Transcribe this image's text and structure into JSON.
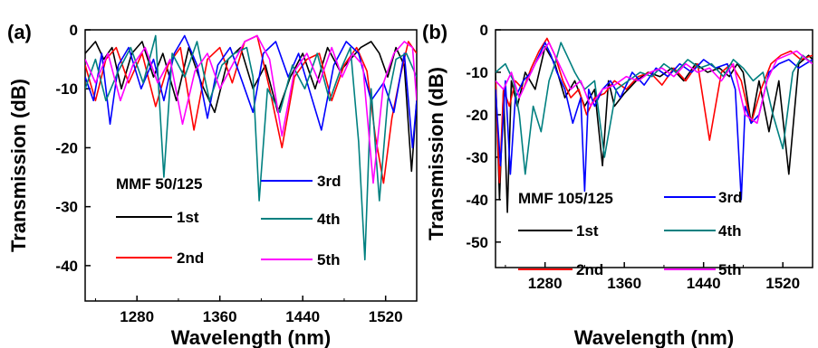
{
  "chart_data": [
    {
      "type": "line",
      "panel_label": "(a)",
      "legend_title": "MMF 50/125",
      "xlabel": "Wavelength (nm)",
      "ylabel": "Transmission (dB)",
      "xlim": [
        1230,
        1550
      ],
      "ylim": [
        -46,
        0
      ],
      "xticks": [
        1280,
        1360,
        1440,
        1520
      ],
      "yticks": [
        0,
        -10,
        -20,
        -30,
        -40
      ],
      "grid": false,
      "series": [
        {
          "name": "1st",
          "color": "#000000",
          "x": [
            1230,
            1240,
            1248,
            1256,
            1265,
            1275,
            1285,
            1296,
            1305,
            1318,
            1330,
            1342,
            1355,
            1368,
            1380,
            1392,
            1404,
            1416,
            1428,
            1440,
            1452,
            1464,
            1476,
            1486,
            1496,
            1506,
            1514,
            1522,
            1530,
            1538,
            1545,
            1550
          ],
          "y": [
            -4,
            -2,
            -5,
            -3,
            -10,
            -4,
            -2,
            -8,
            -4,
            -12,
            -3,
            -9,
            -14,
            -5,
            -3,
            -10,
            -6,
            -14,
            -8,
            -4,
            -10,
            -3,
            -7,
            -5,
            -3,
            -2,
            -4,
            -8,
            -3,
            -6,
            -24,
            -12
          ]
        },
        {
          "name": "2nd",
          "color": "#ff0000",
          "x": [
            1230,
            1240,
            1250,
            1260,
            1272,
            1285,
            1298,
            1310,
            1322,
            1335,
            1348,
            1360,
            1372,
            1384,
            1396,
            1408,
            1420,
            1432,
            1444,
            1456,
            1468,
            1480,
            1492,
            1502,
            1510,
            1518,
            1526,
            1534,
            1542,
            1550
          ],
          "y": [
            -6,
            -12,
            -5,
            -3,
            -9,
            -4,
            -13,
            -6,
            -3,
            -17,
            -5,
            -3,
            -9,
            -2,
            -1,
            -10,
            -20,
            -8,
            -5,
            -4,
            -12,
            -6,
            -3,
            -7,
            -18,
            -26,
            -15,
            -8,
            -2,
            -4
          ]
        },
        {
          "name": "3rd",
          "color": "#0000ff",
          "x": [
            1230,
            1238,
            1246,
            1254,
            1262,
            1272,
            1284,
            1296,
            1306,
            1316,
            1326,
            1338,
            1348,
            1358,
            1370,
            1382,
            1392,
            1402,
            1414,
            1426,
            1436,
            1446,
            1458,
            1470,
            1482,
            1494,
            1506,
            1518,
            1528,
            1538,
            1546,
            1550
          ],
          "y": [
            -8,
            -12,
            -4,
            -16,
            -6,
            -3,
            -10,
            -5,
            -12,
            -4,
            -1,
            -6,
            -15,
            -6,
            -3,
            -9,
            -14,
            -4,
            -2,
            -8,
            -4,
            -10,
            -17,
            -6,
            -2,
            -4,
            -12,
            -9,
            -14,
            -4,
            -20,
            -12
          ]
        },
        {
          "name": "4th",
          "color": "#008080",
          "x": [
            1230,
            1240,
            1250,
            1262,
            1274,
            1286,
            1298,
            1306,
            1314,
            1326,
            1338,
            1350,
            1362,
            1374,
            1386,
            1392,
            1398,
            1406,
            1418,
            1430,
            1442,
            1454,
            1466,
            1476,
            1486,
            1494,
            1500,
            1506,
            1514,
            1522,
            1530,
            1540,
            1550
          ],
          "y": [
            -10,
            -5,
            -12,
            -7,
            -3,
            -9,
            -1,
            -25,
            -4,
            -8,
            -2,
            -12,
            -6,
            -4,
            -3,
            -8,
            -29,
            -10,
            -14,
            -6,
            -10,
            -4,
            -12,
            -7,
            -3,
            -19,
            -39,
            -10,
            -29,
            -12,
            -5,
            -4,
            -8
          ]
        },
        {
          "name": "5th",
          "color": "#ff00ff",
          "x": [
            1230,
            1240,
            1252,
            1264,
            1276,
            1288,
            1300,
            1312,
            1324,
            1336,
            1348,
            1360,
            1372,
            1384,
            1396,
            1408,
            1420,
            1432,
            1444,
            1456,
            1468,
            1478,
            1488,
            1498,
            1508,
            1518,
            1528,
            1538,
            1546,
            1550
          ],
          "y": [
            -5,
            -9,
            -4,
            -12,
            -6,
            -3,
            -9,
            -5,
            -16,
            -7,
            -4,
            -10,
            -6,
            -2,
            -1,
            -5,
            -18,
            -7,
            -4,
            -9,
            -3,
            -8,
            -4,
            -6,
            -26,
            -9,
            -4,
            -2,
            -3,
            -12
          ]
        }
      ]
    },
    {
      "type": "line",
      "panel_label": "(b)",
      "legend_title": "MMF 105/125",
      "xlabel": "Wavelength (nm)",
      "ylabel": "Transmission (dB)",
      "xlim": [
        1230,
        1550
      ],
      "ylim": [
        -56,
        0
      ],
      "xticks": [
        1280,
        1360,
        1440,
        1520
      ],
      "yticks": [
        0,
        -10,
        -20,
        -30,
        -40,
        -50
      ],
      "grid": false,
      "series": [
        {
          "name": "1st",
          "color": "#000000",
          "x": [
            1230,
            1234,
            1238,
            1242,
            1246,
            1252,
            1260,
            1270,
            1280,
            1290,
            1300,
            1310,
            1320,
            1330,
            1338,
            1344,
            1350,
            1360,
            1372,
            1384,
            1396,
            1408,
            1420,
            1432,
            1444,
            1456,
            1466,
            1474,
            1480,
            1488,
            1496,
            1506,
            1516,
            1526,
            1536,
            1546,
            1550
          ],
          "y": [
            -10,
            -40,
            -14,
            -43,
            -12,
            -18,
            -10,
            -14,
            -4,
            -8,
            -16,
            -12,
            -18,
            -14,
            -32,
            -12,
            -18,
            -15,
            -12,
            -10,
            -11,
            -9,
            -12,
            -8,
            -10,
            -9,
            -11,
            -8,
            -10,
            -22,
            -12,
            -24,
            -12,
            -34,
            -8,
            -6,
            -7
          ]
        },
        {
          "name": "2nd",
          "color": "#ff0000",
          "x": [
            1230,
            1234,
            1238,
            1244,
            1250,
            1258,
            1266,
            1274,
            1282,
            1290,
            1298,
            1306,
            1314,
            1322,
            1330,
            1340,
            1350,
            1362,
            1374,
            1386,
            1398,
            1410,
            1422,
            1434,
            1446,
            1458,
            1468,
            1478,
            1488,
            1498,
            1508,
            1518,
            1528,
            1538,
            1550
          ],
          "y": [
            -12,
            -36,
            -14,
            -18,
            -12,
            -14,
            -9,
            -5,
            -2,
            -6,
            -12,
            -16,
            -14,
            -20,
            -16,
            -15,
            -12,
            -14,
            -11,
            -10,
            -13,
            -9,
            -12,
            -8,
            -26,
            -10,
            -8,
            -12,
            -22,
            -14,
            -8,
            -6,
            -5,
            -7,
            -6
          ]
        },
        {
          "name": "3rd",
          "color": "#0000ff",
          "x": [
            1230,
            1235,
            1240,
            1245,
            1250,
            1258,
            1266,
            1274,
            1280,
            1286,
            1292,
            1300,
            1308,
            1316,
            1320,
            1324,
            1330,
            1338,
            1346,
            1356,
            1368,
            1380,
            1392,
            1404,
            1416,
            1428,
            1440,
            1452,
            1464,
            1472,
            1478,
            1482,
            1488,
            1496,
            1506,
            1516,
            1526,
            1536,
            1550
          ],
          "y": [
            -14,
            -32,
            -12,
            -34,
            -16,
            -12,
            -10,
            -6,
            -3,
            -6,
            -10,
            -14,
            -22,
            -16,
            -38,
            -14,
            -18,
            -14,
            -12,
            -16,
            -10,
            -13,
            -9,
            -11,
            -8,
            -10,
            -7,
            -9,
            -8,
            -14,
            -40,
            -18,
            -22,
            -20,
            -10,
            -8,
            -7,
            -9,
            -7
          ]
        },
        {
          "name": "4th",
          "color": "#008080",
          "x": [
            1230,
            1240,
            1248,
            1254,
            1260,
            1268,
            1276,
            1284,
            1290,
            1296,
            1302,
            1310,
            1320,
            1330,
            1340,
            1352,
            1364,
            1376,
            1388,
            1400,
            1412,
            1424,
            1436,
            1448,
            1460,
            1470,
            1480,
            1490,
            1500,
            1510,
            1520,
            1530,
            1540,
            1550
          ],
          "y": [
            -10,
            -8,
            -12,
            -20,
            -34,
            -18,
            -24,
            -12,
            -8,
            -3,
            -6,
            -10,
            -14,
            -12,
            -30,
            -14,
            -12,
            -10,
            -11,
            -8,
            -10,
            -7,
            -9,
            -8,
            -11,
            -7,
            -9,
            -12,
            -10,
            -20,
            -28,
            -10,
            -6,
            -8
          ]
        },
        {
          "name": "5th",
          "color": "#ff00ff",
          "x": [
            1230,
            1238,
            1246,
            1254,
            1262,
            1270,
            1278,
            1284,
            1290,
            1298,
            1306,
            1316,
            1326,
            1338,
            1350,
            1362,
            1374,
            1386,
            1398,
            1410,
            1422,
            1434,
            1446,
            1458,
            1470,
            1482,
            1494,
            1504,
            1514,
            1524,
            1534,
            1544,
            1550
          ],
          "y": [
            -12,
            -14,
            -10,
            -16,
            -12,
            -8,
            -5,
            -3,
            -6,
            -10,
            -14,
            -12,
            -18,
            -14,
            -13,
            -11,
            -12,
            -10,
            -9,
            -11,
            -8,
            -10,
            -9,
            -12,
            -8,
            -20,
            -22,
            -12,
            -7,
            -6,
            -5,
            -7,
            -8
          ]
        }
      ]
    }
  ]
}
